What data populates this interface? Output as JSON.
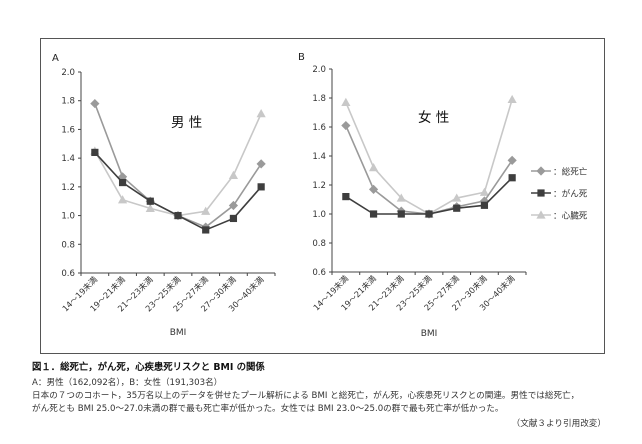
{
  "chart_data": [
    {
      "type": "line",
      "panel": "A",
      "annotation": "男 性",
      "xlabel": "BMI",
      "ylabel": "",
      "ylim": [
        0.6,
        2.0
      ],
      "yticks": [
        "0.6",
        "0.8",
        "1.0",
        "1.2",
        "1.4",
        "1.6",
        "1.8",
        "2.0"
      ],
      "categories": [
        "14～19未満",
        "19～21未満",
        "21～23未満",
        "23～25未満",
        "25～27未満",
        "27～30未満",
        "30～40未満"
      ],
      "grid": false,
      "series": [
        {
          "name": "総死亡",
          "marker": "diamond",
          "color": "#9a9a9a",
          "values": [
            1.78,
            1.27,
            1.1,
            1.0,
            0.92,
            1.07,
            1.36
          ]
        },
        {
          "name": "がん死",
          "marker": "square",
          "color": "#3e3e3e",
          "values": [
            1.44,
            1.23,
            1.1,
            1.0,
            0.9,
            0.98,
            1.2
          ]
        },
        {
          "name": "心臓死",
          "marker": "triangle",
          "color": "#c8c8c8",
          "values": [
            1.45,
            1.11,
            1.05,
            1.0,
            1.03,
            1.28,
            1.71
          ]
        }
      ]
    },
    {
      "type": "line",
      "panel": "B",
      "annotation": "女 性",
      "xlabel": "BMI",
      "ylabel": "",
      "ylim": [
        0.6,
        2.0
      ],
      "yticks": [
        "0.6",
        "0.8",
        "1.0",
        "1.2",
        "1.4",
        "1.6",
        "1.8",
        "2.0"
      ],
      "categories": [
        "14～19未満",
        "19～21未満",
        "21～23未満",
        "23～25未満",
        "25～27未満",
        "27～30未満",
        "30～40未満"
      ],
      "grid": false,
      "legend": "right",
      "series": [
        {
          "name": "総死亡",
          "marker": "diamond",
          "color": "#9a9a9a",
          "values": [
            1.61,
            1.17,
            1.02,
            1.0,
            1.05,
            1.09,
            1.37
          ]
        },
        {
          "name": "がん死",
          "marker": "square",
          "color": "#3e3e3e",
          "values": [
            1.12,
            1.0,
            1.0,
            1.0,
            1.04,
            1.06,
            1.25
          ]
        },
        {
          "name": "心臓死",
          "marker": "triangle",
          "color": "#c8c8c8",
          "values": [
            1.77,
            1.32,
            1.11,
            1.0,
            1.11,
            1.15,
            1.79
          ]
        }
      ]
    }
  ],
  "legend_items": [
    {
      "label": "：総死亡",
      "marker": "diamond",
      "color": "#9a9a9a"
    },
    {
      "label": "：がん死",
      "marker": "square",
      "color": "#3e3e3e"
    },
    {
      "label": "：心臓死",
      "marker": "triangle",
      "color": "#c8c8c8"
    }
  ],
  "caption": {
    "title": "図１．総死亡，がん死，心疾患死リスクと BMI の関係",
    "line1": "A：男性（162,092名），B：女性（191,303名）",
    "line2": "日本の７つのコホート，35万名以上のデータを併せたプール解析による BMI と総死亡，がん死，心疾患死リスクとの関連。男性では総死亡，",
    "line3": "がん死とも BMI 25.0～27.0未満の群で最も死亡率が低かった。女性では BMI 23.0～25.0の群で最も死亡率が低かった。",
    "source": "（文献３より引用改変）"
  }
}
